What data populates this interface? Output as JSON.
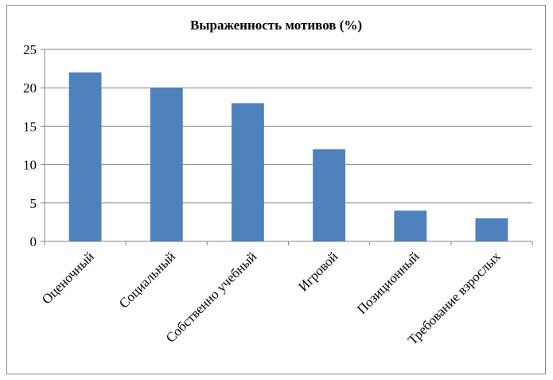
{
  "chart_data": {
    "type": "bar",
    "title": "Выраженность мотивов (%)",
    "categories": [
      "Оценочный",
      "Социальный",
      "Собственно учебный",
      "Игровой",
      "Позиционный",
      "Требование взрослых"
    ],
    "values": [
      22,
      20,
      18,
      12,
      4,
      3
    ],
    "ylim": [
      0,
      25
    ],
    "yticks": [
      0,
      5,
      10,
      15,
      20,
      25
    ],
    "grid": true,
    "legend": "none",
    "bar_color": "#4f81bd"
  }
}
